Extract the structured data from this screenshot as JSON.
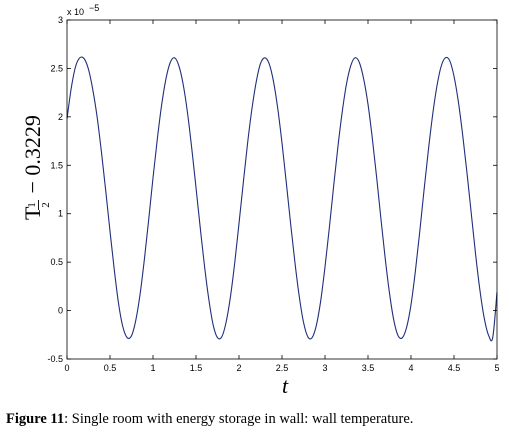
{
  "caption": {
    "label": "Figure 11",
    "text": ": Single room with energy storage in wall: wall temperature."
  },
  "chart_data": {
    "type": "line",
    "title": "",
    "xlabel": "t",
    "ylabel": {
      "main": "T",
      "sub_num": "1",
      "sub_den": "2",
      "suffix": " − 0.3229"
    },
    "y_multiplier": "x 10",
    "y_multiplier_exp": "−5",
    "xlim": [
      0,
      5
    ],
    "ylim": [
      -0.5,
      3
    ],
    "xticks": [
      0,
      0.5,
      1,
      1.5,
      2,
      2.5,
      3,
      3.5,
      4,
      4.5,
      5
    ],
    "xtick_labels": [
      "0",
      "0.5",
      "1",
      "1.5",
      "2",
      "2.5",
      "3",
      "3.5",
      "4",
      "4.5",
      "5"
    ],
    "yticks": [
      -0.5,
      0,
      0.5,
      1,
      1.5,
      2,
      2.5,
      3
    ],
    "ytick_labels": [
      "-0.5",
      "0",
      "0.5",
      "1",
      "1.5",
      "2",
      "2.5",
      "3"
    ],
    "grid": false,
    "line_color": "#1f2f7a",
    "series": [
      {
        "x": [
          0,
          0.05,
          0.1,
          0.15,
          0.2,
          0.25,
          0.3,
          0.35,
          0.4,
          0.45,
          0.5,
          0.55,
          0.6,
          0.65,
          0.7,
          0.75,
          0.8,
          0.85,
          0.9,
          0.95,
          1.0,
          1.05,
          1.1,
          1.15,
          1.2,
          1.25,
          1.3,
          1.35,
          1.4,
          1.45,
          1.5,
          1.55,
          1.6,
          1.65,
          1.7,
          1.75,
          1.8,
          1.85,
          1.9,
          1.95,
          2.0,
          2.05,
          2.1,
          2.15,
          2.2,
          2.25,
          2.3,
          2.35,
          2.4,
          2.45,
          2.5,
          2.55,
          2.6,
          2.65,
          2.7,
          2.75,
          2.8,
          2.85,
          2.9,
          2.95,
          3.0,
          3.05,
          3.1,
          3.15,
          3.2,
          3.25,
          3.3,
          3.35,
          3.4,
          3.45,
          3.5,
          3.55,
          3.6,
          3.65,
          3.7,
          3.75,
          3.8,
          3.85,
          3.9,
          3.95,
          4.0,
          4.05,
          4.1,
          4.15,
          4.2,
          4.25,
          4.3,
          4.35,
          4.4,
          4.45,
          4.5,
          4.55,
          4.6,
          4.65,
          4.7,
          4.75,
          4.8,
          4.85,
          4.9,
          4.95,
          5.0
        ],
        "y": [
          1.98,
          2.3,
          2.52,
          2.61,
          2.6,
          2.49,
          2.28,
          2.0,
          1.64,
          1.24,
          0.82,
          0.42,
          0.07,
          -0.17,
          -0.28,
          -0.26,
          -0.1,
          0.17,
          0.53,
          0.94,
          1.37,
          1.77,
          2.12,
          2.39,
          2.56,
          2.61,
          2.53,
          2.34,
          2.05,
          1.68,
          1.27,
          0.85,
          0.45,
          0.11,
          -0.15,
          -0.28,
          -0.27,
          -0.12,
          0.14,
          0.49,
          0.9,
          1.32,
          1.73,
          2.08,
          2.36,
          2.55,
          2.61,
          2.55,
          2.37,
          2.09,
          1.73,
          1.32,
          0.9,
          0.5,
          0.15,
          -0.12,
          -0.27,
          -0.28,
          -0.15,
          0.1,
          0.45,
          0.85,
          1.28,
          1.69,
          2.05,
          2.34,
          2.53,
          2.61,
          2.56,
          2.39,
          2.13,
          1.78,
          1.38,
          0.95,
          0.54,
          0.18,
          -0.1,
          -0.26,
          -0.28,
          -0.17,
          0.06,
          0.4,
          0.8,
          1.23,
          1.64,
          2.01,
          2.31,
          2.52,
          2.61,
          2.58,
          2.42,
          2.16,
          1.82,
          1.43,
          1.01,
          0.59,
          0.22,
          -0.07,
          -0.25,
          -0.28,
          0.19
        ]
      }
    ]
  }
}
